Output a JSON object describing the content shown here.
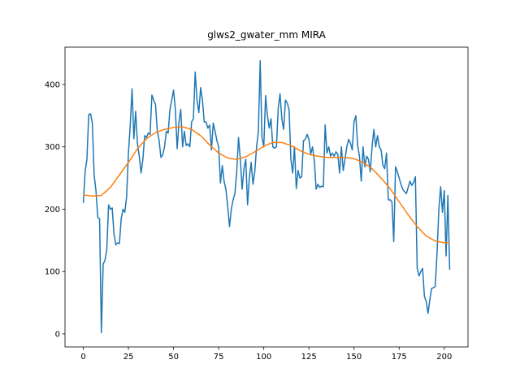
{
  "chart_data": {
    "type": "line",
    "title": "glws2_gwater_mm MIRA",
    "xlim": [
      -10.15,
      213.15
    ],
    "xticks": [
      0,
      25,
      50,
      75,
      100,
      125,
      150,
      175,
      200
    ],
    "ylim": [
      -20.9,
      459.9
    ],
    "yticks": [
      0,
      100,
      200,
      300,
      400
    ],
    "series": [
      {
        "color": "#1f77b4",
        "x": [
          0,
          1,
          2,
          3,
          4,
          5,
          6,
          7,
          8,
          9,
          10,
          11,
          12,
          13,
          14,
          15,
          16,
          17,
          18,
          19,
          20,
          21,
          22,
          23,
          24,
          25,
          26,
          27,
          28,
          29,
          30,
          31,
          32,
          33,
          34,
          35,
          36,
          37,
          38,
          39,
          40,
          41,
          42,
          43,
          44,
          45,
          46,
          47,
          48,
          49,
          50,
          51,
          52,
          53,
          54,
          55,
          56,
          57,
          58,
          59,
          60,
          61,
          62,
          63,
          64,
          65,
          66,
          67,
          68,
          69,
          70,
          71,
          72,
          73,
          74,
          75,
          76,
          77,
          78,
          79,
          80,
          81,
          82,
          83,
          84,
          85,
          86,
          87,
          88,
          89,
          90,
          91,
          92,
          93,
          94,
          95,
          96,
          97,
          98,
          99,
          100,
          101,
          102,
          103,
          104,
          105,
          106,
          107,
          108,
          109,
          110,
          111,
          112,
          113,
          114,
          115,
          116,
          117,
          118,
          119,
          120,
          121,
          122,
          123,
          124,
          125,
          126,
          127,
          128,
          129,
          130,
          131,
          132,
          133,
          134,
          135,
          136,
          137,
          138,
          139,
          140,
          141,
          142,
          143,
          144,
          145,
          146,
          147,
          148,
          149,
          150,
          151,
          152,
          153,
          154,
          155,
          156,
          157,
          158,
          159,
          160,
          161,
          162,
          163,
          164,
          165,
          166,
          167,
          168,
          169,
          170,
          171,
          172,
          173,
          174,
          175,
          176,
          177,
          178,
          179,
          180,
          181,
          182,
          183,
          184,
          185,
          186,
          187,
          188,
          189,
          190,
          191,
          192,
          193,
          194,
          195,
          196,
          197,
          198,
          199,
          200,
          201,
          202,
          203
        ],
        "values": [
          210,
          260,
          280,
          352,
          353,
          338,
          255,
          230,
          187,
          185,
          2,
          112,
          118,
          135,
          207,
          200,
          202,
          160,
          143,
          146,
          145,
          185,
          200,
          195,
          220,
          290,
          335,
          393,
          313,
          357,
          305,
          285,
          258,
          280,
          318,
          315,
          322,
          320,
          383,
          375,
          368,
          325,
          310,
          283,
          287,
          300,
          325,
          322,
          360,
          375,
          391,
          360,
          297,
          340,
          360,
          300,
          325,
          302,
          305,
          300,
          340,
          345,
          420,
          375,
          355,
          395,
          375,
          340,
          340,
          330,
          335,
          295,
          338,
          325,
          310,
          300,
          242,
          270,
          245,
          232,
          205,
          172,
          200,
          215,
          225,
          260,
          315,
          280,
          232,
          265,
          280,
          207,
          250,
          275,
          240,
          260,
          300,
          325,
          438,
          315,
          300,
          382,
          350,
          330,
          345,
          300,
          298,
          300,
          362,
          385,
          345,
          328,
          375,
          370,
          360,
          280,
          258,
          300,
          233,
          262,
          250,
          252,
          310,
          312,
          320,
          312,
          288,
          300,
          278,
          232,
          240,
          235,
          237,
          236,
          335,
          290,
          300,
          285,
          290,
          285,
          292,
          288,
          258,
          300,
          262,
          280,
          300,
          312,
          306,
          295,
          340,
          350,
          302,
          285,
          245,
          300,
          268,
          285,
          280,
          260,
          300,
          328,
          300,
          318,
          300,
          295,
          270,
          265,
          290,
          215,
          215,
          212,
          148,
          268,
          260,
          250,
          240,
          232,
          228,
          225,
          235,
          245,
          238,
          243,
          252,
          105,
          93,
          100,
          105,
          60,
          52,
          33,
          55,
          73,
          74,
          76,
          130,
          200,
          236,
          195,
          230,
          125,
          222,
          103
        ]
      },
      {
        "color": "#ff7f0e",
        "x": [
          0,
          5,
          10,
          15,
          20,
          25,
          30,
          35,
          40,
          45,
          50,
          55,
          60,
          65,
          70,
          75,
          80,
          85,
          90,
          95,
          100,
          105,
          110,
          115,
          120,
          125,
          130,
          135,
          140,
          145,
          150,
          155,
          160,
          165,
          170,
          175,
          180,
          185,
          190,
          195,
          200,
          203
        ],
        "values": [
          223,
          221,
          222,
          235,
          255,
          275,
          297,
          313,
          323,
          328,
          331,
          332,
          328,
          318,
          303,
          290,
          282,
          280,
          284,
          292,
          301,
          307,
          307,
          302,
          294,
          288,
          285,
          283,
          283,
          283,
          281,
          275,
          265,
          250,
          233,
          212,
          191,
          172,
          157,
          149,
          146,
          146
        ]
      }
    ]
  }
}
